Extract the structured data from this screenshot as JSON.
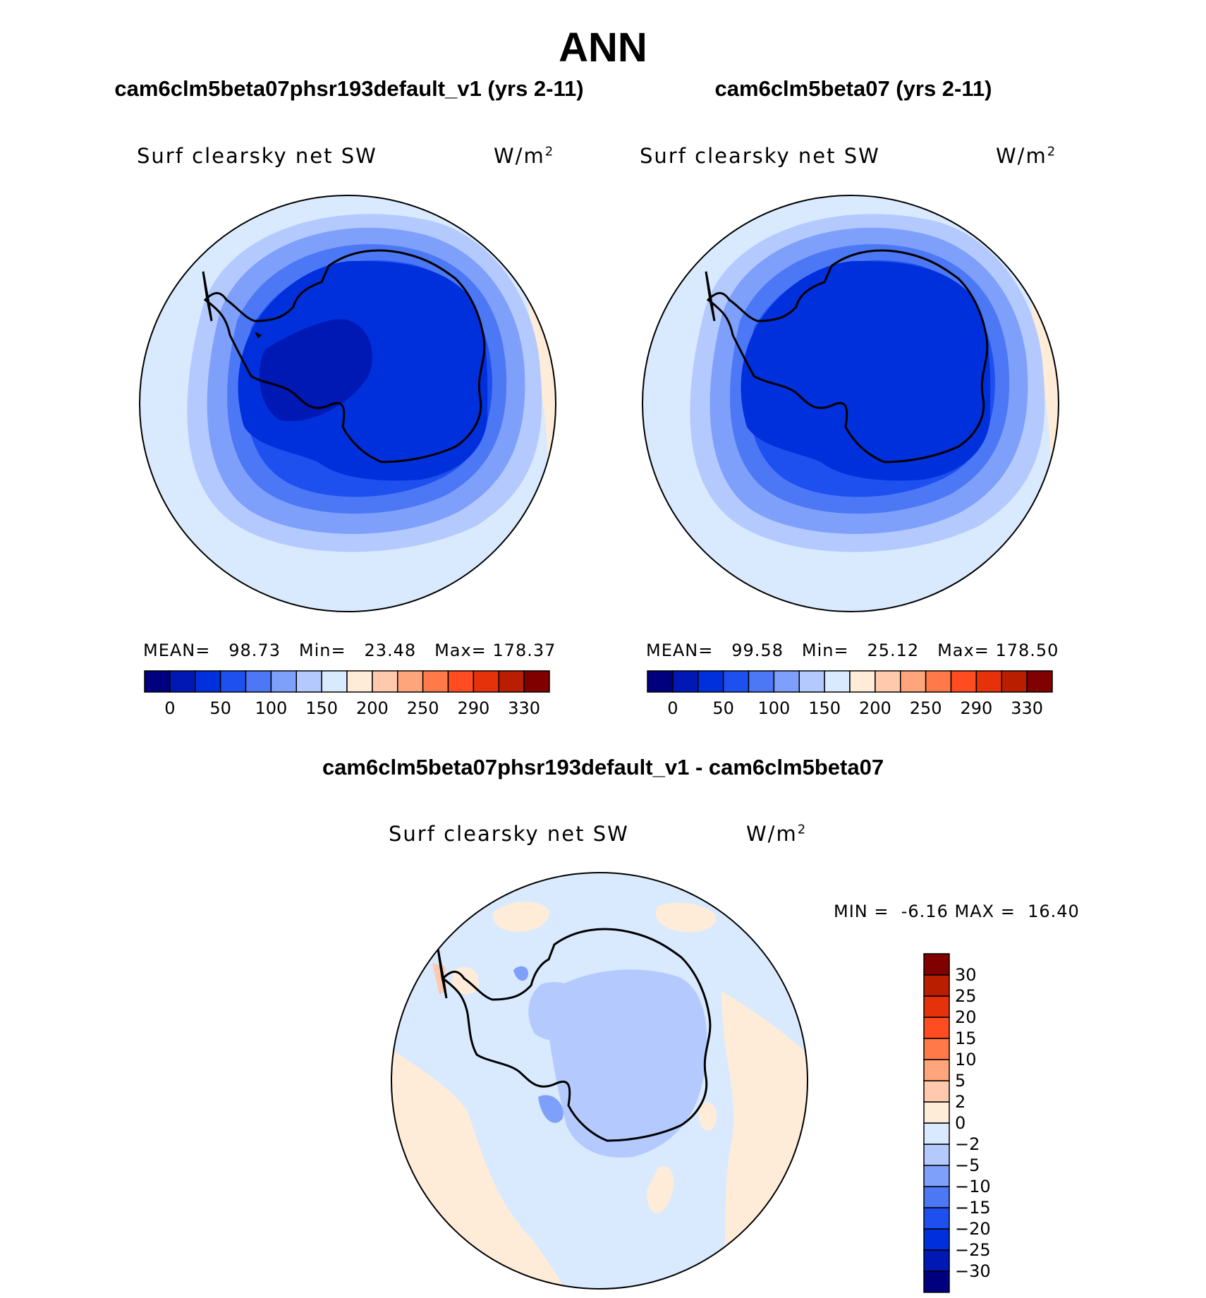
{
  "figure": {
    "title": "ANN"
  },
  "panels": [
    {
      "title": "cam6clm5beta07phsr193default_v1 (yrs 2-11)",
      "field": "Surf clearsky net SW",
      "units": "W/m",
      "units_exp": "2",
      "stats": {
        "mean_label": "MEAN=",
        "mean": "98.73",
        "min_label": "Min=",
        "min": "23.48",
        "max_label": "Max=",
        "max": "178.37"
      }
    },
    {
      "title": "cam6clm5beta07 (yrs 2-11)",
      "field": "Surf clearsky net SW",
      "units": "W/m",
      "units_exp": "2",
      "stats": {
        "mean_label": "MEAN=",
        "mean": "99.58",
        "min_label": "Min=",
        "min": "25.12",
        "max_label": "Max=",
        "max": "178.50"
      }
    }
  ],
  "difference": {
    "title": "cam6clm5beta07phsr193default_v1 - cam6clm5beta07",
    "field": "Surf clearsky net SW",
    "units": "W/m",
    "units_exp": "2",
    "stats": {
      "min_label": "MIN =",
      "min": "-6.16",
      "max_label": "MAX =",
      "max": "16.40"
    }
  },
  "colorbars": {
    "absolute": {
      "colors": [
        "#00007f",
        "#0018b4",
        "#0030dc",
        "#1e50f0",
        "#4c78f5",
        "#7ea0fa",
        "#b4caff",
        "#d9eaff",
        "#ffecd8",
        "#ffc9ad",
        "#ffa57b",
        "#ff7a48",
        "#ff4c21",
        "#e6320a",
        "#b91e00",
        "#800000"
      ],
      "tick_labels": [
        "0",
        "50",
        "100",
        "150",
        "200",
        "250",
        "290",
        "330"
      ]
    },
    "difference": {
      "colors": [
        "#00007f",
        "#0018b4",
        "#0030dc",
        "#1e50f0",
        "#4c78f5",
        "#7ea0fa",
        "#b4caff",
        "#d9eaff",
        "#ffecd8",
        "#ffc9ad",
        "#ffa57b",
        "#ff7a48",
        "#ff4c21",
        "#e6320a",
        "#b91e00",
        "#800000"
      ],
      "tick_labels": [
        "30",
        "25",
        "20",
        "15",
        "10",
        "5",
        "2",
        "0",
        "−2",
        "−5",
        "−10",
        "−15",
        "−20",
        "−25",
        "−30"
      ]
    }
  }
}
